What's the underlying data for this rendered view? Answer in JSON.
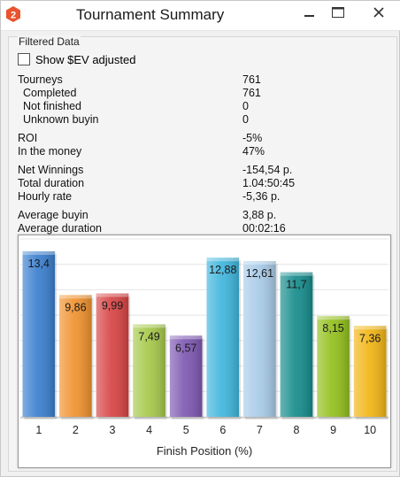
{
  "window": {
    "title": "Tournament Summary",
    "app_icon": "app-logo-icon",
    "controls": [
      "minimize-icon",
      "maximize-icon",
      "close-icon"
    ]
  },
  "filtered": {
    "group_label": "Filtered Data",
    "show_sev_label": "Show $EV adjusted",
    "show_sev_checked": false
  },
  "stats": [
    {
      "key": "tourneys",
      "label": "Tourneys",
      "value": "761",
      "indent": false
    },
    {
      "key": "completed",
      "label": "Completed",
      "value": "761",
      "indent": true
    },
    {
      "key": "not-finished",
      "label": "Not finished",
      "value": "0",
      "indent": true
    },
    {
      "key": "unknown-buyin",
      "label": "Unknown buyin",
      "value": "0",
      "indent": true
    },
    {
      "key": "roi",
      "label": "ROI",
      "value": "-5%",
      "indent": false
    },
    {
      "key": "in-the-money",
      "label": "In the money",
      "value": "47%",
      "indent": false
    },
    {
      "key": "net-winnings",
      "label": "Net Winnings",
      "value": "-154,54 р.",
      "indent": false
    },
    {
      "key": "total-duration",
      "label": "Total duration",
      "value": "1.04:50:45",
      "indent": false
    },
    {
      "key": "hourly-rate",
      "label": "Hourly rate",
      "value": "-5,36 р.",
      "indent": false
    },
    {
      "key": "average-buyin",
      "label": "Average buyin",
      "value": "3,88 р.",
      "indent": false
    },
    {
      "key": "average-duration",
      "label": "Average duration",
      "value": "00:02:16",
      "indent": false
    }
  ],
  "chart_data": {
    "type": "bar",
    "categories": [
      "1",
      "2",
      "3",
      "4",
      "5",
      "6",
      "7",
      "8",
      "9",
      "10"
    ],
    "values": [
      13.4,
      9.86,
      9.99,
      7.49,
      6.57,
      12.88,
      12.61,
      11.7,
      8.15,
      7.36
    ],
    "value_labels": [
      "13,4",
      "9,86",
      "9,99",
      "7,49",
      "6,57",
      "12,88",
      "12,61",
      "11,7",
      "8,15",
      "7,36"
    ],
    "colors": [
      "#3a7fcf",
      "#f0922e",
      "#d84444",
      "#a6c94a",
      "#7e58b2",
      "#3fb6dd",
      "#a8cbe8",
      "#168c8c",
      "#93c01c",
      "#f2b515"
    ],
    "title": "",
    "xlabel": "Finish Position (%)",
    "ylabel": "",
    "ylim": [
      0,
      14.4
    ],
    "grid": true
  }
}
